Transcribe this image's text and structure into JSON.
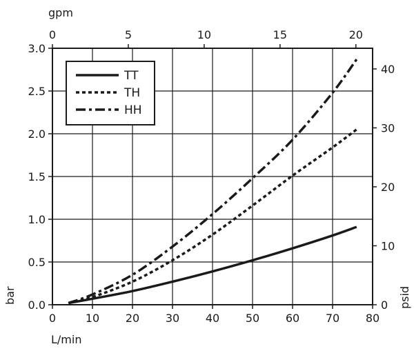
{
  "chart_data": {
    "type": "line",
    "title": "",
    "xlabel": "L/min",
    "ylabel": "bar",
    "x2label": "gpm",
    "y2label": "psid",
    "xlim": [
      0,
      80
    ],
    "ylim": [
      0,
      3.0
    ],
    "x2lim": [
      0,
      21.1
    ],
    "y2lim": [
      0,
      43.5
    ],
    "xticks": [
      "0",
      "10",
      "20",
      "30",
      "40",
      "50",
      "60",
      "70",
      "80"
    ],
    "yticks": [
      "0.0",
      "0.5",
      "1.0",
      "1.5",
      "2.0",
      "2.5",
      "3.0"
    ],
    "x2ticks": [
      "0",
      "5",
      "10",
      "15",
      "20"
    ],
    "y2ticks": [
      "0",
      "10",
      "20",
      "30",
      "40"
    ],
    "grid": true,
    "legend_position": "top-left",
    "series": [
      {
        "name": "TT",
        "style": "solid",
        "x": [
          4,
          10,
          20,
          30,
          40,
          50,
          60,
          70,
          76
        ],
        "y": [
          0.02,
          0.07,
          0.16,
          0.27,
          0.39,
          0.52,
          0.66,
          0.81,
          0.91
        ]
      },
      {
        "name": "TH",
        "style": "dotted",
        "x": [
          4,
          10,
          20,
          30,
          40,
          50,
          60,
          70,
          76
        ],
        "y": [
          0.02,
          0.09,
          0.27,
          0.52,
          0.82,
          1.16,
          1.51,
          1.84,
          2.05
        ]
      },
      {
        "name": "HH",
        "style": "dashdot",
        "x": [
          4,
          10,
          20,
          30,
          40,
          50,
          60,
          70,
          76
        ],
        "y": [
          0.02,
          0.12,
          0.35,
          0.68,
          1.06,
          1.48,
          1.93,
          2.48,
          2.87
        ]
      }
    ]
  }
}
